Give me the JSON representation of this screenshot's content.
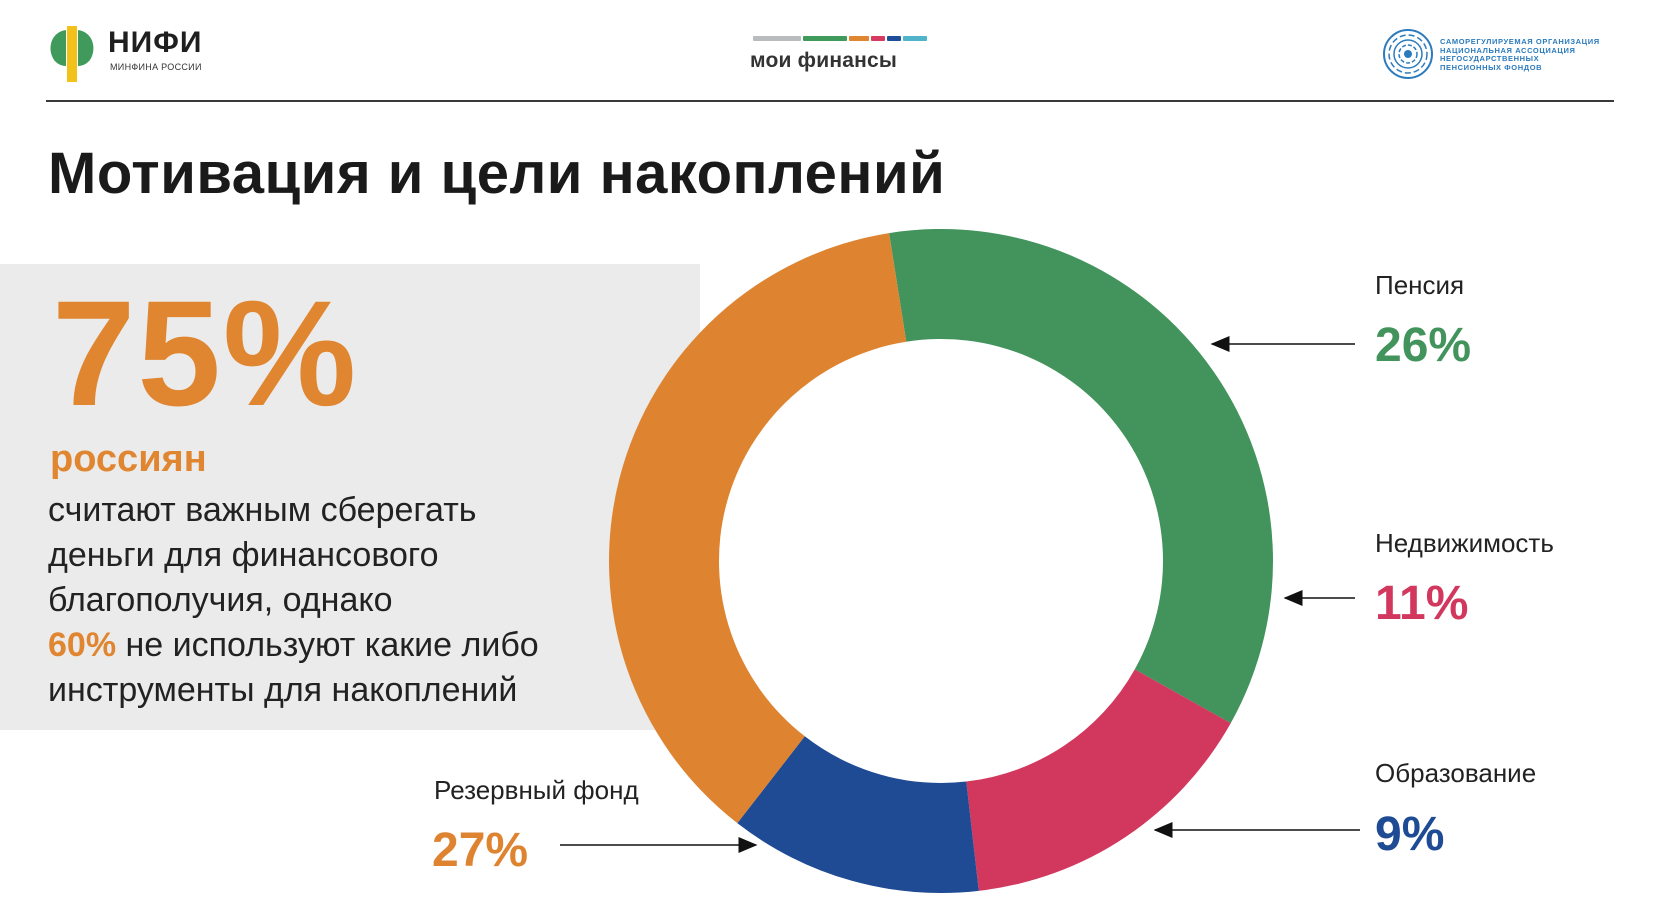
{
  "header": {
    "nifi_logo": {
      "name": "НИФИ",
      "subtitle": "МИНФИНА РОССИИ"
    },
    "moi_logo": {
      "name": "мои финансы",
      "stripe_colors": [
        "#b9bcbf",
        "#3f9a5c",
        "#e08530",
        "#d63a61",
        "#1f4e99",
        "#4fb3c9"
      ]
    },
    "napf_logo": {
      "lines": [
        "САМОРЕГУЛИРУЕМАЯ ОРГАНИЗАЦИЯ",
        "НАЦИОНАЛЬНАЯ АССОЦИАЦИЯ",
        "НЕГОСУДАРСТВЕННЫХ",
        "ПЕНСИОННЫХ ФОНДОВ"
      ]
    }
  },
  "title": "Мотивация и цели накоплений",
  "highlight": {
    "big_value": "75%",
    "subject": "россиян",
    "text_lines": [
      "считают важным сберегать",
      "деньги для финансового",
      "благополучия, однако"
    ],
    "second_value": "60%",
    "text_after": [
      " не используют какие либо",
      "инструменты для накоплений"
    ]
  },
  "chart_data": {
    "type": "pie",
    "donut": true,
    "slices": [
      {
        "label": "Пенсия",
        "value": 26,
        "display": "26%",
        "color": "#42935c"
      },
      {
        "label": "Недвижимость",
        "value": 11,
        "display": "11%",
        "color": "#d2385e"
      },
      {
        "label": "Образование",
        "value": 9,
        "display": "9%",
        "color": "#1e4b94"
      },
      {
        "label": "Резервный фонд",
        "value": 27,
        "display": "27%",
        "color": "#de8431"
      }
    ]
  }
}
